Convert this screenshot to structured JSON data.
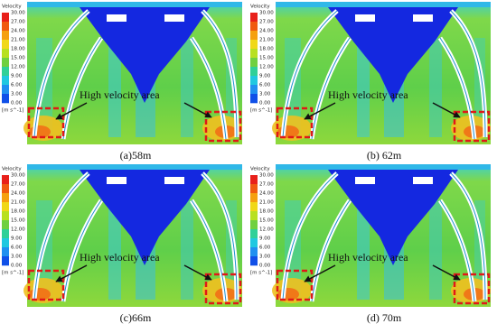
{
  "panels": [
    {
      "legend": {
        "title": "Velocity",
        "ticks": [
          "30.00",
          "27.00",
          "24.00",
          "21.00",
          "18.00",
          "15.00",
          "12.00",
          "9.00",
          "6.00",
          "3.00",
          "0.00"
        ],
        "unit": "[m s^-1]"
      },
      "annotation": "High velocity area",
      "caption": "(a)58m"
    },
    {
      "legend": {
        "title": "Velocity",
        "ticks": [
          "30.00",
          "27.00",
          "24.00",
          "21.00",
          "18.00",
          "15.00",
          "12.00",
          "9.00",
          "6.00",
          "3.00",
          "0.00"
        ],
        "unit": "[m s^-1]"
      },
      "annotation": "High velocity area",
      "caption": "(b) 62m"
    },
    {
      "legend": {
        "title": "Velocity",
        "ticks": [
          "30.00",
          "27.00",
          "24.00",
          "21.00",
          "18.00",
          "15.00",
          "12.00",
          "9.00",
          "6.00",
          "3.00",
          "0.00"
        ],
        "unit": "[m s^-1]"
      },
      "annotation": "High velocity area",
      "caption": "(c)66m"
    },
    {
      "legend": {
        "title": "Velocity",
        "ticks": [
          "30.00",
          "27.00",
          "24.00",
          "21.00",
          "18.00",
          "15.00",
          "12.00",
          "9.00",
          "6.00",
          "3.00",
          "0.00"
        ],
        "unit": "[m s^-1]"
      },
      "annotation": "High velocity area",
      "caption": "(d) 70m"
    }
  ]
}
